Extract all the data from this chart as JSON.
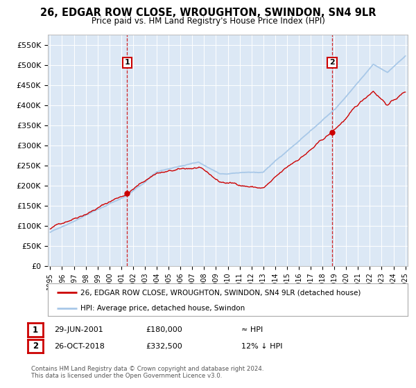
{
  "title": "26, EDGAR ROW CLOSE, WROUGHTON, SWINDON, SN4 9LR",
  "subtitle": "Price paid vs. HM Land Registry's House Price Index (HPI)",
  "ylabel_ticks": [
    "£0",
    "£50K",
    "£100K",
    "£150K",
    "£200K",
    "£250K",
    "£300K",
    "£350K",
    "£400K",
    "£450K",
    "£500K",
    "£550K"
  ],
  "ytick_values": [
    0,
    50000,
    100000,
    150000,
    200000,
    250000,
    300000,
    350000,
    400000,
    450000,
    500000,
    550000
  ],
  "ylim": [
    0,
    575000
  ],
  "xmin_year": 1995,
  "xmax_year": 2025,
  "xtick_years": [
    1995,
    1996,
    1997,
    1998,
    1999,
    2000,
    2001,
    2002,
    2003,
    2004,
    2005,
    2006,
    2007,
    2008,
    2009,
    2010,
    2011,
    2012,
    2013,
    2014,
    2015,
    2016,
    2017,
    2018,
    2019,
    2020,
    2021,
    2022,
    2023,
    2024,
    2025
  ],
  "hpi_color": "#a8c8e8",
  "price_color": "#cc0000",
  "vline_color": "#cc0000",
  "marker1_year": 2001.49,
  "marker1_price": 180000,
  "marker2_year": 2018.82,
  "marker2_price": 332500,
  "legend_line1": "26, EDGAR ROW CLOSE, WROUGHTON, SWINDON, SN4 9LR (detached house)",
  "legend_line2": "HPI: Average price, detached house, Swindon",
  "annot1_date": "29-JUN-2001",
  "annot1_price": "£180,000",
  "annot1_hpi": "≈ HPI",
  "annot2_date": "26-OCT-2018",
  "annot2_price": "£332,500",
  "annot2_hpi": "12% ↓ HPI",
  "footer": "Contains HM Land Registry data © Crown copyright and database right 2024.\nThis data is licensed under the Open Government Licence v3.0.",
  "bg_color": "#ffffff",
  "plot_bg_color": "#dce8f5",
  "grid_color": "#ffffff"
}
